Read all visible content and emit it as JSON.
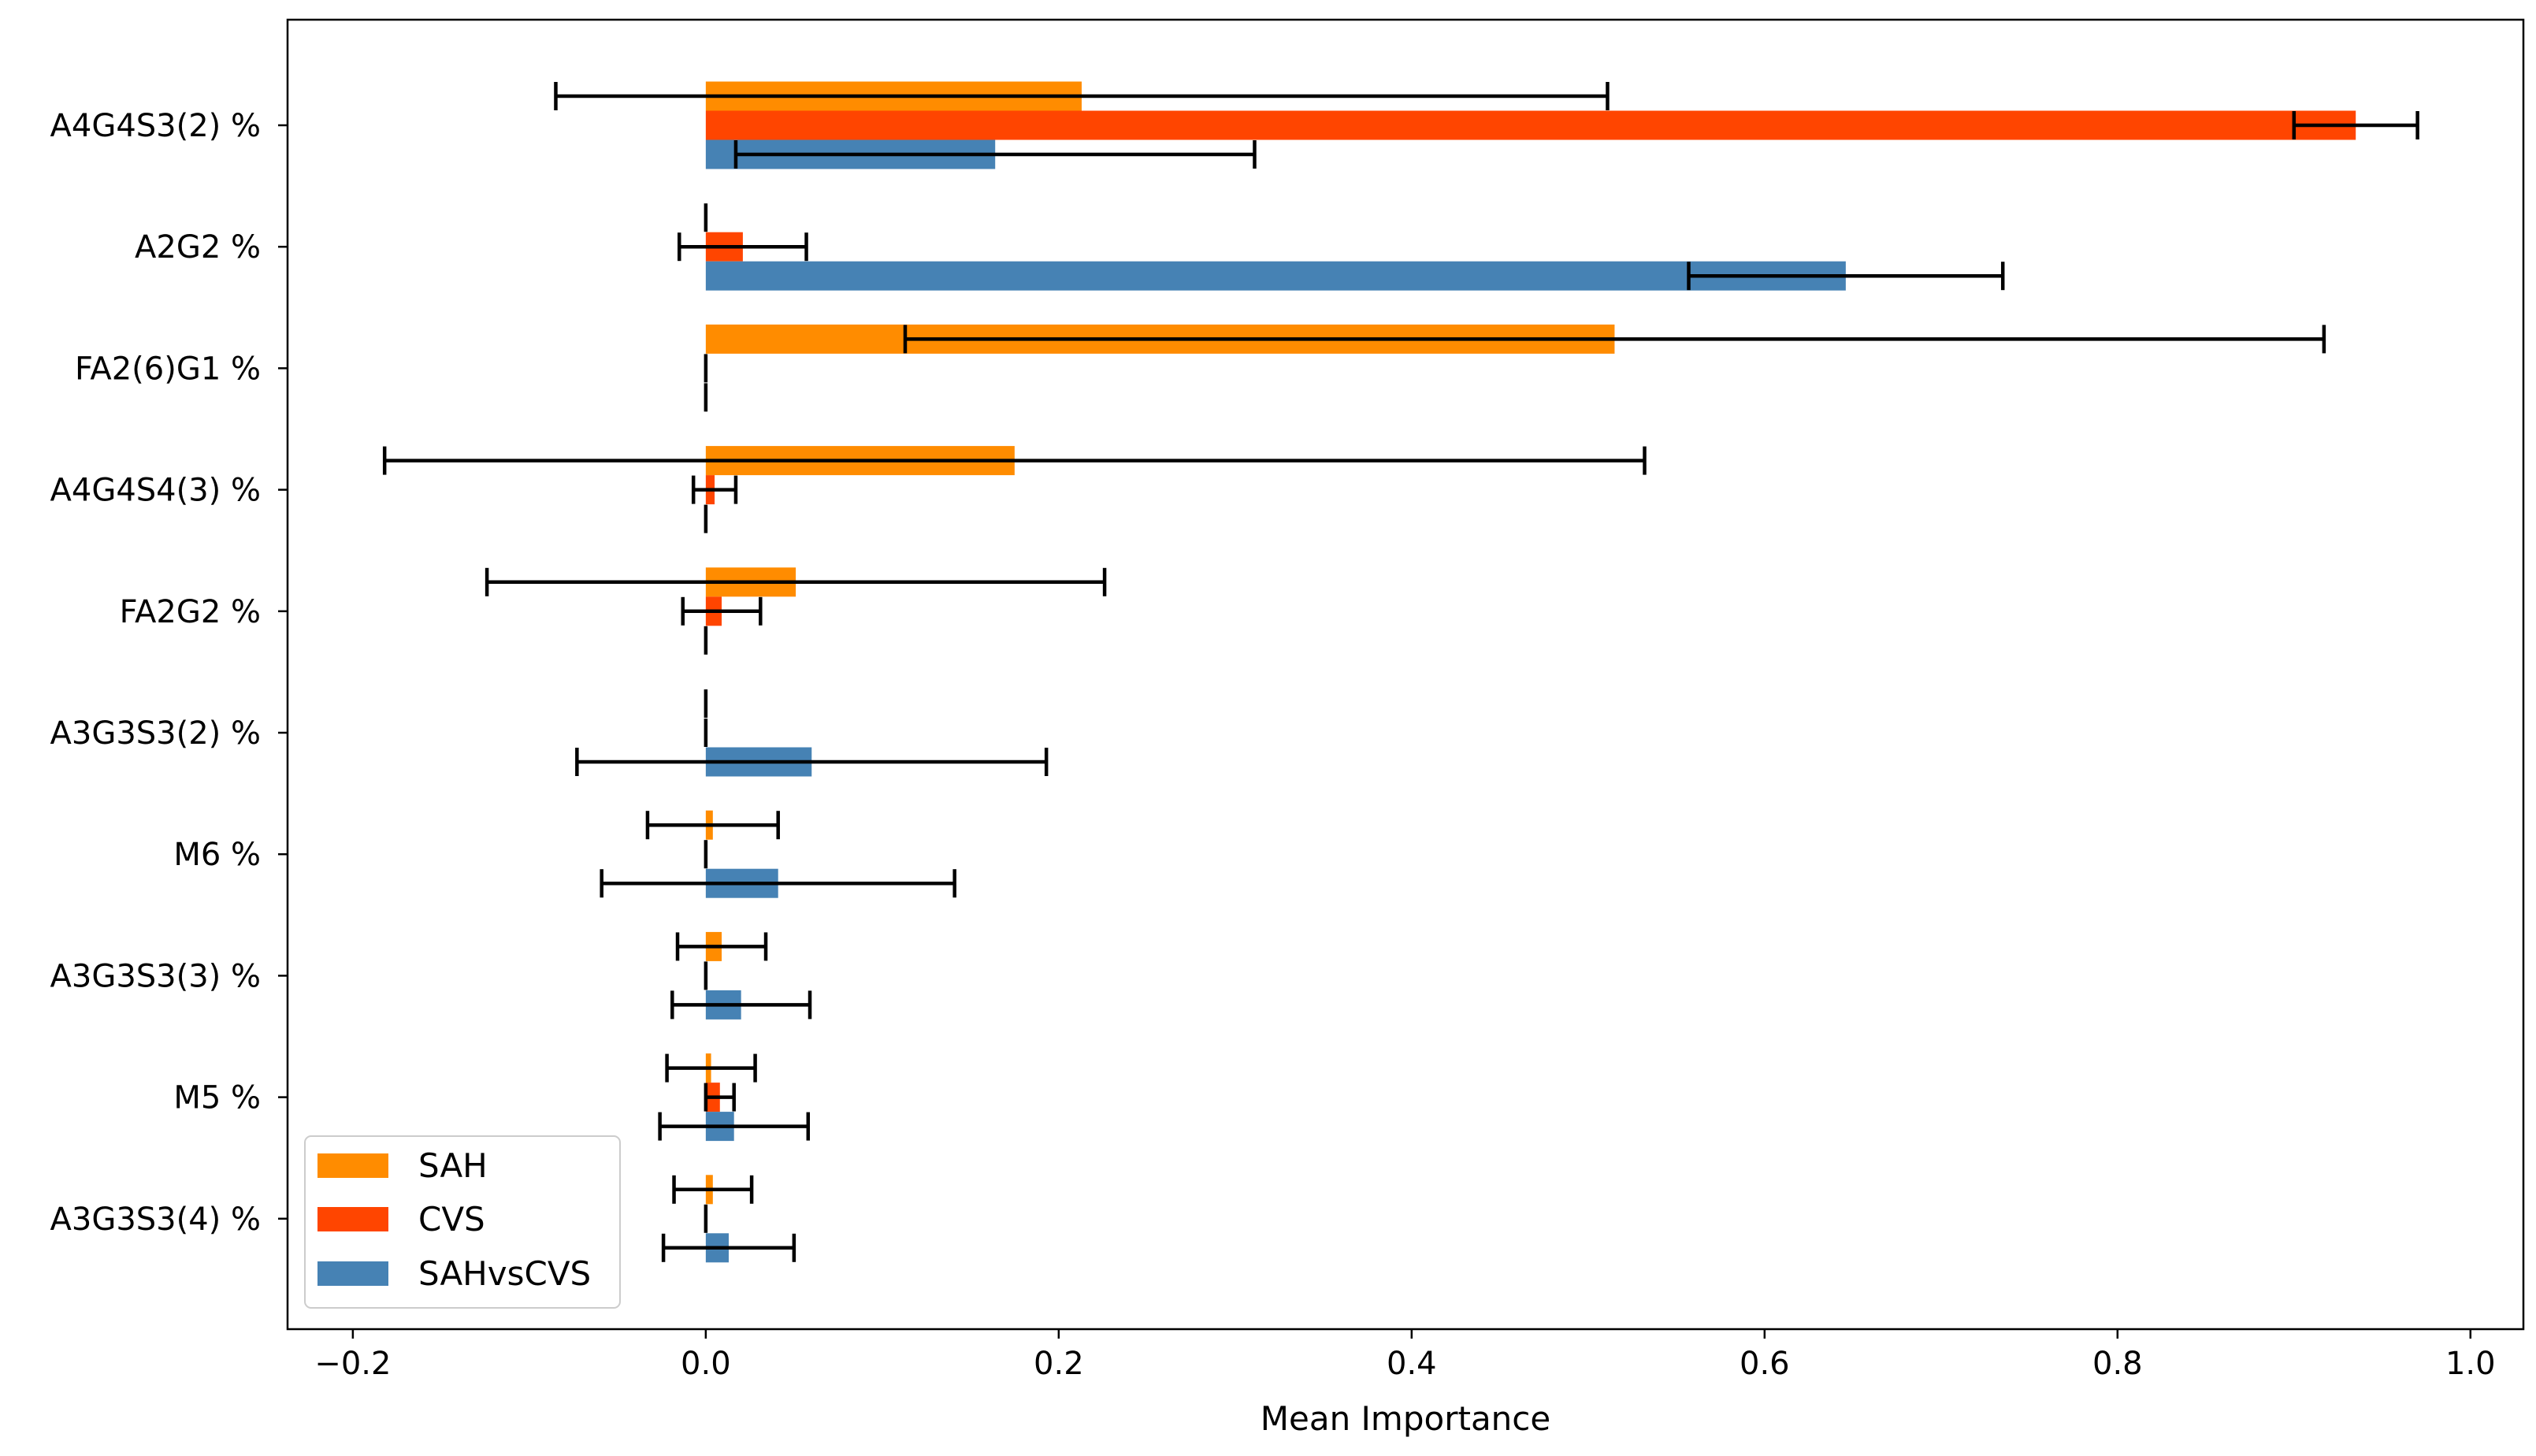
{
  "chart_data": {
    "type": "bar",
    "orientation": "horizontal",
    "title": "",
    "xlabel": "Mean Importance",
    "ylabel": "",
    "xlim": [
      -0.237,
      1.03
    ],
    "xticks": [
      -0.2,
      0.0,
      0.2,
      0.4,
      0.6,
      0.8,
      1.0
    ],
    "xtick_labels": [
      "−0.2",
      "0.0",
      "0.2",
      "0.4",
      "0.6",
      "0.8",
      "1.0"
    ],
    "grid": false,
    "legend_position": "lower-left",
    "categories": [
      "A4G4S3(2) %",
      "A2G2 %",
      "FA2(6)G1 %",
      "A4G4S4(3) %",
      "FA2G2 %",
      "A3G3S3(2) %",
      "M6 %",
      "A3G3S3(3) %",
      "M5 %",
      "A3G3S3(4) %"
    ],
    "series": [
      {
        "name": "SAH",
        "color": "#ff8c00",
        "values": [
          0.213,
          0.0,
          0.515,
          0.175,
          0.051,
          0.0,
          0.004,
          0.009,
          0.003,
          0.004
        ],
        "errors": [
          0.298,
          0.0,
          0.402,
          0.357,
          0.175,
          0.0,
          0.037,
          0.025,
          0.025,
          0.022
        ]
      },
      {
        "name": "CVS",
        "color": "#ff4500",
        "values": [
          0.935,
          0.021,
          0.0,
          0.005,
          0.009,
          0.0,
          0.0,
          0.0,
          0.008,
          0.0
        ],
        "errors": [
          0.035,
          0.036,
          0.0,
          0.012,
          0.022,
          0.0,
          0.0,
          0.0,
          0.008,
          0.0
        ]
      },
      {
        "name": "SAHvsCVS",
        "color": "#4682b4",
        "values": [
          0.164,
          0.646,
          0.0,
          0.0,
          0.0,
          0.06,
          0.041,
          0.02,
          0.016,
          0.013
        ],
        "errors": [
          0.147,
          0.089,
          0.0,
          0.0,
          0.0,
          0.133,
          0.1,
          0.039,
          0.042,
          0.037
        ]
      }
    ]
  }
}
